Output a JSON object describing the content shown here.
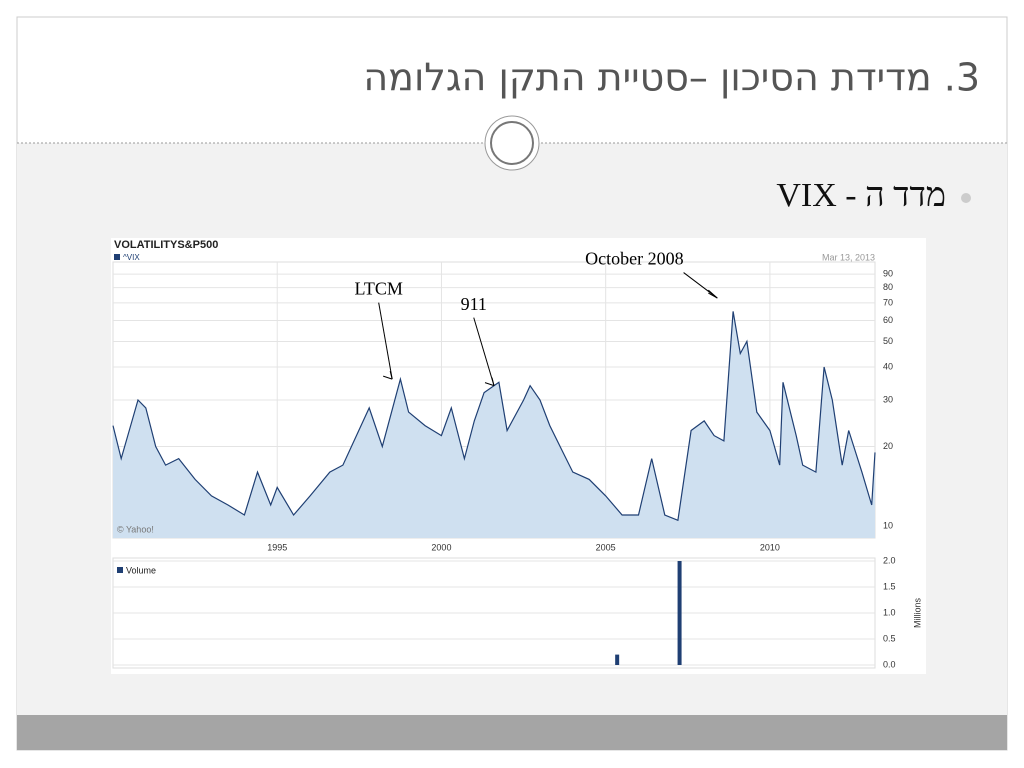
{
  "slide": {
    "title": "3. מדידת הסיכון –סטיית התקן הגלומה",
    "bullet": "מדד ה - VIX"
  },
  "chart_data": [
    {
      "type": "line",
      "title": "VOLATILITYS&P500",
      "date": "Mar 13, 2013",
      "credit": "© Yahoo!",
      "log_scale": true,
      "grid": true,
      "x": [
        1990.0,
        1990.25,
        1990.76,
        1991.0,
        1991.3,
        1991.6,
        1992.0,
        1992.5,
        1993.0,
        1993.5,
        1994.0,
        1994.4,
        1994.8,
        1995.0,
        1995.5,
        1996.0,
        1996.6,
        1997.0,
        1997.8,
        1998.2,
        1998.75,
        1999.0,
        1999.5,
        2000.0,
        2000.3,
        2000.7,
        2001.0,
        2001.3,
        2001.75,
        2002.0,
        2002.5,
        2002.7,
        2003.0,
        2003.3,
        2003.7,
        2004.0,
        2004.5,
        2005.0,
        2005.5,
        2006.0,
        2006.4,
        2006.8,
        2007.2,
        2007.6,
        2008.0,
        2008.3,
        2008.6,
        2008.88,
        2009.1,
        2009.3,
        2009.6,
        2010.0,
        2010.3,
        2010.4,
        2010.8,
        2011.0,
        2011.4,
        2011.65,
        2011.9,
        2012.2,
        2012.4,
        2012.8,
        2013.1,
        2013.2
      ],
      "series": [
        {
          "name": "^VIX",
          "color": "#1f3f73",
          "fill": "#cfe0f0",
          "values": [
            24,
            18,
            30,
            28,
            20,
            17,
            18,
            15,
            13,
            12,
            11,
            16,
            12,
            14,
            11,
            13,
            16,
            17,
            28,
            20,
            36,
            27,
            24,
            22,
            28,
            18,
            25,
            32,
            35,
            23,
            30,
            34,
            30,
            24,
            19,
            16,
            15,
            13,
            11,
            11,
            18,
            11,
            10.5,
            23,
            25,
            22,
            21,
            65,
            45,
            50,
            27,
            23,
            17,
            35,
            22,
            17,
            16,
            40,
            30,
            17,
            23,
            16,
            12,
            19
          ]
        }
      ],
      "xlim": [
        1990,
        2013.2
      ],
      "xticks": [
        1995,
        2000,
        2005,
        2010
      ],
      "ylim": [
        9,
        100
      ],
      "yticks": [
        10,
        20,
        30,
        40,
        50,
        60,
        70,
        80,
        90
      ],
      "annotations": [
        {
          "text": "LTCM",
          "x": 1998.5,
          "y": 36
        },
        {
          "text": "911",
          "x": 2001.6,
          "y": 34
        },
        {
          "text": "October 2008",
          "x": 2008.4,
          "y": 73
        }
      ]
    },
    {
      "type": "bar",
      "y_label": "Millions",
      "legend": "Volume",
      "color": "#1f3f73",
      "x": [
        2005.35,
        2007.25
      ],
      "values": [
        0.2,
        2.0
      ],
      "xlim": [
        1990,
        2013.2
      ],
      "ylim": [
        0,
        2
      ],
      "yticks": [
        {
          "value": 0,
          "label": "0.0"
        },
        {
          "value": 0.5,
          "label": "0.5"
        },
        {
          "value": 1,
          "label": "1.0"
        },
        {
          "value": 1.5,
          "label": "1.5"
        },
        {
          "value": 2,
          "label": "2.0"
        }
      ]
    }
  ]
}
